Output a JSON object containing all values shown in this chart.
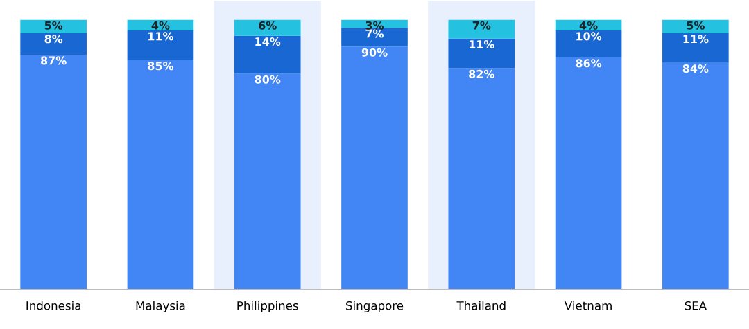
{
  "chart_data": {
    "type": "bar",
    "stacked": true,
    "categories": [
      "Indonesia",
      "Malaysia",
      "Philippines",
      "Singapore",
      "Thailand",
      "Vietnam",
      "SEA"
    ],
    "series": [
      {
        "color": "#4285f4",
        "values": [
          87,
          85,
          80,
          90,
          82,
          86,
          84
        ],
        "value_labels": [
          "87%",
          "85%",
          "80%",
          "90%",
          "82%",
          "86%",
          "84%"
        ]
      },
      {
        "color": "#1967d2",
        "values": [
          8,
          11,
          14,
          7,
          11,
          10,
          11
        ],
        "value_labels": [
          "8%",
          "11%",
          "14%",
          "7%",
          "11%",
          "10%",
          "11%"
        ]
      },
      {
        "color": "#24c1e0",
        "values": [
          5,
          4,
          6,
          3,
          7,
          4,
          5
        ],
        "value_labels": [
          "5%",
          "4%",
          "6%",
          "3%",
          "7%",
          "4%",
          "5%"
        ]
      }
    ],
    "tick_labels": "x",
    "bands": [
      {
        "axis": "x",
        "from": "Philippines",
        "to": "Philippines",
        "color": "#e8f0fe"
      },
      {
        "axis": "x",
        "from": "Thailand",
        "to": "Thailand",
        "color": "#e8f0fe"
      }
    ]
  }
}
